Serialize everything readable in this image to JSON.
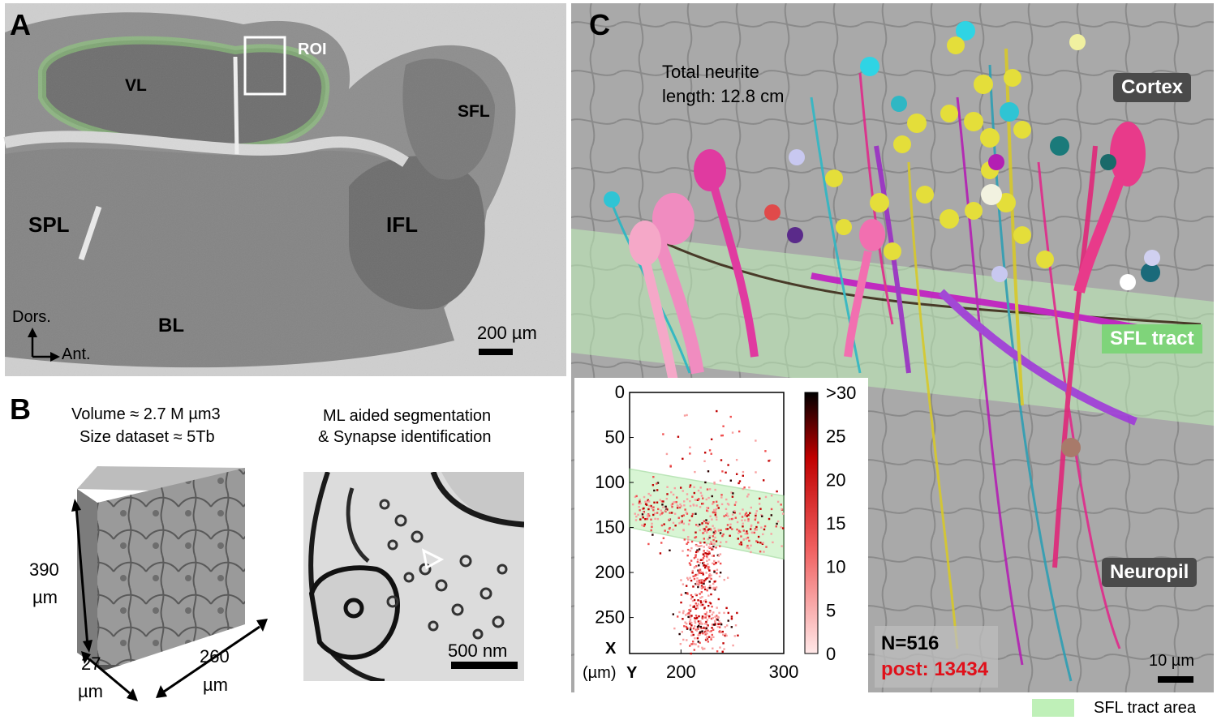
{
  "panel_a": {
    "letter": "A",
    "regions": [
      "VL",
      "SFL",
      "SPL",
      "IFL",
      "BL"
    ],
    "roi": "ROI",
    "orient_dors": "Dors.",
    "orient_ant": "Ant.",
    "scale": "200 µm"
  },
  "panel_b": {
    "letter": "B",
    "volume": "Volume ≈ 2.7 M µm3",
    "size": "Size dataset ≈ 5Tb",
    "ml_line1": "ML aided segmentation",
    "ml_line2": "& Synapse identification",
    "dim_h_val": "390",
    "dim_h_unit": "µm",
    "dim_d_val": "27",
    "dim_d_unit": "µm",
    "dim_w_val": "260",
    "dim_w_unit": "µm",
    "em_scale": "500 nm"
  },
  "panel_c": {
    "letter": "C",
    "neurite_line1": "Total neurite",
    "neurite_line2": "length: 12.8 cm",
    "cortex": "Cortex",
    "sfl_tract": "SFL tract",
    "neuropil": "Neuropil",
    "n_count": "N=516",
    "post_count": "post: 13434",
    "scale": "10 µm",
    "legend": "SFL tract area",
    "tract_color": "#bff0b8"
  },
  "chart_data": {
    "type": "heatmap",
    "x_axis_label": "X",
    "y_axis_label": "Y",
    "unit_label": "(µm)",
    "xlim": [
      150,
      300
    ],
    "ylim": [
      0,
      290
    ],
    "y_reversed": true,
    "x_ticks": [
      "200",
      "300"
    ],
    "y_ticks": [
      "0",
      "50",
      "100",
      "150",
      "200",
      "250"
    ],
    "colorbar_ticks": [
      "0",
      "5",
      "10",
      "15",
      "20",
      "25",
      ">30"
    ],
    "colorbar_range": [
      0,
      30
    ],
    "tract_band": {
      "top_left": [
        150,
        85
      ],
      "top_right": [
        300,
        115
      ],
      "bottom_left": [
        150,
        150
      ],
      "bottom_right": [
        300,
        185
      ]
    }
  }
}
